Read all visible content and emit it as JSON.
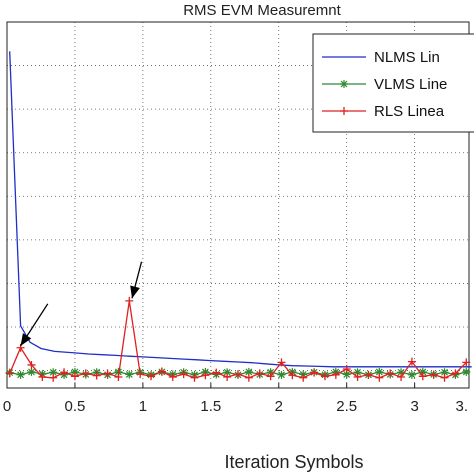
{
  "chart_data": {
    "type": "line",
    "title": "RMS EVM Measuremnt",
    "xlabel": "Iteration Symbols",
    "ylabel": "",
    "xlim": [
      0,
      3.4
    ],
    "ylim": [
      0,
      1
    ],
    "grid": true,
    "legend_position": "top-right",
    "x_ticks": [
      0,
      0.5,
      1,
      1.5,
      2,
      2.5,
      3
    ],
    "x_tick_labels": [
      "0",
      "0.5",
      "1",
      "1.5",
      "2",
      "2.5",
      "3"
    ],
    "x_tick_label_clipped": "3.",
    "series": [
      {
        "name": "NLMS Lin",
        "color": "#1f2fc8",
        "marker": "none",
        "x": [
          0.02,
          0.1,
          0.17,
          0.25,
          0.35,
          0.5,
          0.6,
          0.7,
          0.8,
          0.9,
          1.0,
          1.1,
          1.2,
          1.3,
          1.4,
          1.5,
          1.6,
          1.7,
          1.8,
          1.9,
          2.0,
          2.1,
          2.2,
          2.3,
          2.4,
          2.5,
          2.6,
          2.7,
          2.8,
          2.9,
          3.0,
          3.1,
          3.2,
          3.3,
          3.42
        ],
        "y": [
          0.92,
          0.17,
          0.125,
          0.108,
          0.1,
          0.096,
          0.093,
          0.091,
          0.089,
          0.087,
          0.085,
          0.083,
          0.081,
          0.079,
          0.077,
          0.075,
          0.073,
          0.071,
          0.069,
          0.066,
          0.063,
          0.061,
          0.06,
          0.059,
          0.058,
          0.058,
          0.058,
          0.058,
          0.058,
          0.058,
          0.058,
          0.058,
          0.058,
          0.058,
          0.058
        ]
      },
      {
        "name": "VLMS Line",
        "color": "#2e8a2e",
        "marker": "star",
        "x": [
          0.02,
          0.1,
          0.18,
          0.26,
          0.34,
          0.42,
          0.5,
          0.58,
          0.66,
          0.74,
          0.82,
          0.9,
          0.98,
          1.06,
          1.14,
          1.22,
          1.3,
          1.38,
          1.46,
          1.54,
          1.62,
          1.7,
          1.78,
          1.86,
          1.94,
          2.02,
          2.1,
          2.18,
          2.26,
          2.34,
          2.42,
          2.5,
          2.58,
          2.66,
          2.74,
          2.82,
          2.9,
          2.98,
          3.06,
          3.14,
          3.22,
          3.3,
          3.38
        ],
        "y": [
          0.042,
          0.036,
          0.044,
          0.038,
          0.043,
          0.036,
          0.044,
          0.037,
          0.043,
          0.036,
          0.044,
          0.037,
          0.043,
          0.036,
          0.044,
          0.037,
          0.043,
          0.036,
          0.044,
          0.037,
          0.043,
          0.036,
          0.044,
          0.037,
          0.043,
          0.036,
          0.044,
          0.037,
          0.043,
          0.036,
          0.044,
          0.037,
          0.043,
          0.036,
          0.044,
          0.037,
          0.043,
          0.036,
          0.044,
          0.037,
          0.043,
          0.036,
          0.044
        ]
      },
      {
        "name": "RLS Linea",
        "color": "#e02020",
        "marker": "plus",
        "x": [
          0.02,
          0.1,
          0.18,
          0.26,
          0.34,
          0.42,
          0.5,
          0.58,
          0.66,
          0.74,
          0.82,
          0.9,
          0.98,
          1.06,
          1.14,
          1.22,
          1.3,
          1.38,
          1.46,
          1.54,
          1.62,
          1.7,
          1.78,
          1.86,
          1.94,
          2.02,
          2.1,
          2.18,
          2.26,
          2.34,
          2.42,
          2.5,
          2.58,
          2.66,
          2.74,
          2.82,
          2.9,
          2.98,
          3.06,
          3.14,
          3.22,
          3.3,
          3.38
        ],
        "y": [
          0.04,
          0.11,
          0.063,
          0.03,
          0.028,
          0.043,
          0.032,
          0.04,
          0.034,
          0.04,
          0.03,
          0.238,
          0.038,
          0.032,
          0.045,
          0.03,
          0.038,
          0.028,
          0.035,
          0.042,
          0.03,
          0.038,
          0.028,
          0.04,
          0.032,
          0.07,
          0.035,
          0.028,
          0.042,
          0.032,
          0.036,
          0.052,
          0.03,
          0.036,
          0.028,
          0.04,
          0.03,
          0.072,
          0.032,
          0.036,
          0.028,
          0.04,
          0.07
        ]
      }
    ],
    "annotations": [
      {
        "type": "arrow",
        "from": [
          0.3,
          0.23
        ],
        "to": [
          0.1,
          0.115
        ]
      },
      {
        "type": "arrow",
        "from": [
          0.99,
          0.345
        ],
        "to": [
          0.92,
          0.245
        ]
      }
    ]
  }
}
